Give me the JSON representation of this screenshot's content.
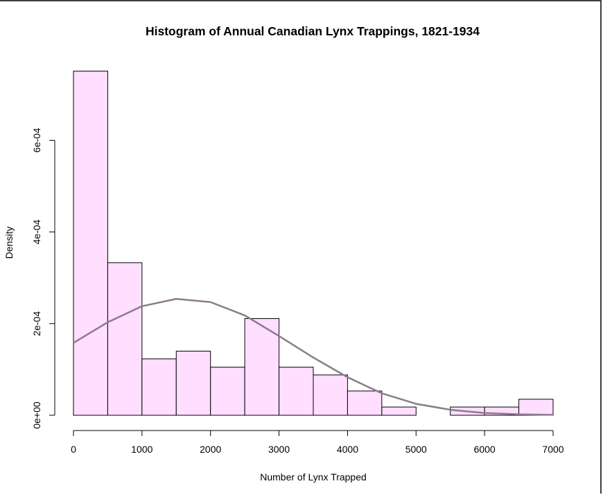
{
  "chart_data": {
    "type": "bar",
    "title": "Histogram of Annual Canadian Lynx Trappings, 1821-1934",
    "xlabel": "Number of Lynx Trapped",
    "ylabel": "Density",
    "xlim": [
      0,
      7000
    ],
    "ylim": [
      0,
      0.00075
    ],
    "x_ticks": [
      0,
      1000,
      2000,
      3000,
      4000,
      5000,
      6000,
      7000
    ],
    "x_tick_labels": [
      "0",
      "1000",
      "2000",
      "3000",
      "4000",
      "5000",
      "6000",
      "7000"
    ],
    "y_ticks": [
      0,
      0.0002,
      0.0004,
      0.0006
    ],
    "y_tick_labels": [
      "0e+00",
      "2e-04",
      "4e-04",
      "6e-04"
    ],
    "bin_width": 500,
    "bins": [
      {
        "start": 0,
        "end": 500,
        "density": 0.000751
      },
      {
        "start": 500,
        "end": 1000,
        "density": 0.000333
      },
      {
        "start": 1000,
        "end": 1500,
        "density": 0.000123
      },
      {
        "start": 1500,
        "end": 2000,
        "density": 0.00014
      },
      {
        "start": 2000,
        "end": 2500,
        "density": 0.000105
      },
      {
        "start": 2500,
        "end": 3000,
        "density": 0.000211
      },
      {
        "start": 3000,
        "end": 3500,
        "density": 0.000105
      },
      {
        "start": 3500,
        "end": 4000,
        "density": 8.8e-05
      },
      {
        "start": 4000,
        "end": 4500,
        "density": 5.3e-05
      },
      {
        "start": 4500,
        "end": 5000,
        "density": 1.8e-05
      },
      {
        "start": 5000,
        "end": 5500,
        "density": 0
      },
      {
        "start": 5500,
        "end": 6000,
        "density": 1.8e-05
      },
      {
        "start": 6000,
        "end": 6500,
        "density": 1.8e-05
      },
      {
        "start": 6500,
        "end": 7000,
        "density": 3.5e-05
      }
    ],
    "curve": {
      "type": "line",
      "x": [
        0,
        500,
        1000,
        1500,
        2000,
        2500,
        3000,
        3500,
        4000,
        4500,
        5000,
        5500,
        6000,
        6500,
        7000
      ],
      "y": [
        0.000158,
        0.000203,
        0.000238,
        0.000254,
        0.000247,
        0.000218,
        0.000173,
        0.000126,
        8.3e-05,
        4.8e-05,
        2.5e-05,
        1.2e-05,
        5e-06,
        2e-06,
        1e-06
      ]
    },
    "colors": {
      "bar_fill": "#ffdeff",
      "bar_stroke": "#000000",
      "curve": "#8b7b8b"
    }
  }
}
